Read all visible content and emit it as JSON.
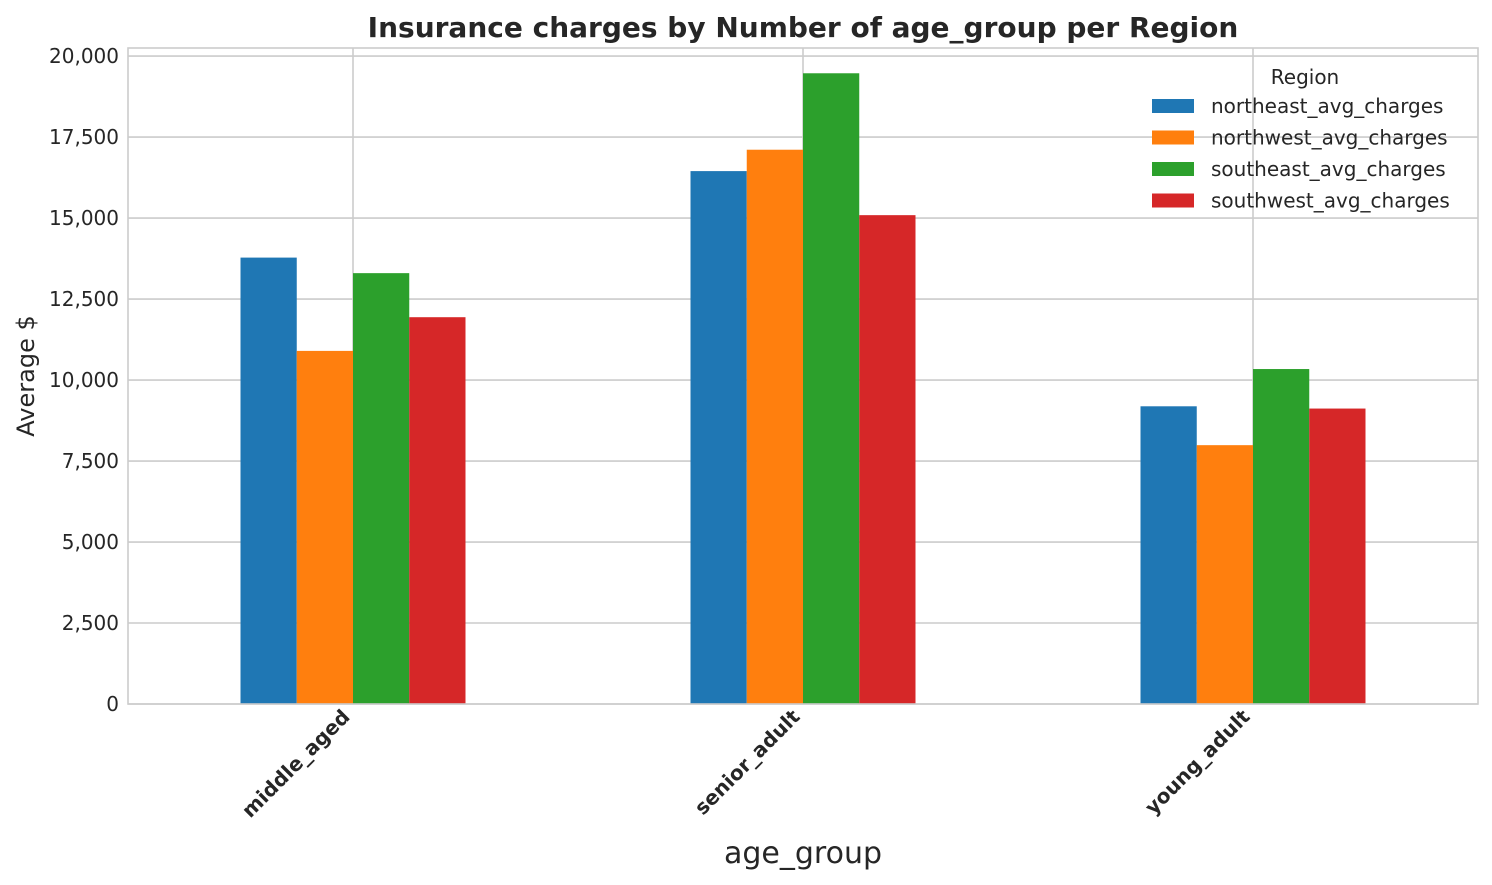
{
  "chart_data": {
    "type": "bar",
    "title": "Insurance charges by Number of age_group per Region",
    "xlabel": "age_group",
    "ylabel": "Average $",
    "categories": [
      "middle_aged",
      "senior_adult",
      "young_adult"
    ],
    "series": [
      {
        "name": "northeast_avg_charges",
        "color": "#1f77b4",
        "values": [
          13780,
          16450,
          9190
        ]
      },
      {
        "name": "northwest_avg_charges",
        "color": "#ff7f0e",
        "values": [
          10900,
          17110,
          7990
        ]
      },
      {
        "name": "southeast_avg_charges",
        "color": "#2ca02c",
        "values": [
          13300,
          19470,
          10340
        ]
      },
      {
        "name": "southwest_avg_charges",
        "color": "#d62728",
        "values": [
          11940,
          15090,
          9120
        ]
      }
    ],
    "ylim": [
      0,
      20250
    ],
    "yticks": [
      0,
      2500,
      5000,
      7500,
      10000,
      12500,
      15000,
      17500,
      20000
    ],
    "ytick_labels": [
      "0",
      "2,500",
      "5,000",
      "7,500",
      "10,000",
      "12,500",
      "15,000",
      "17,500",
      "20,000"
    ],
    "grid": true,
    "legend": {
      "title": "Region",
      "placement": "top-right"
    }
  }
}
